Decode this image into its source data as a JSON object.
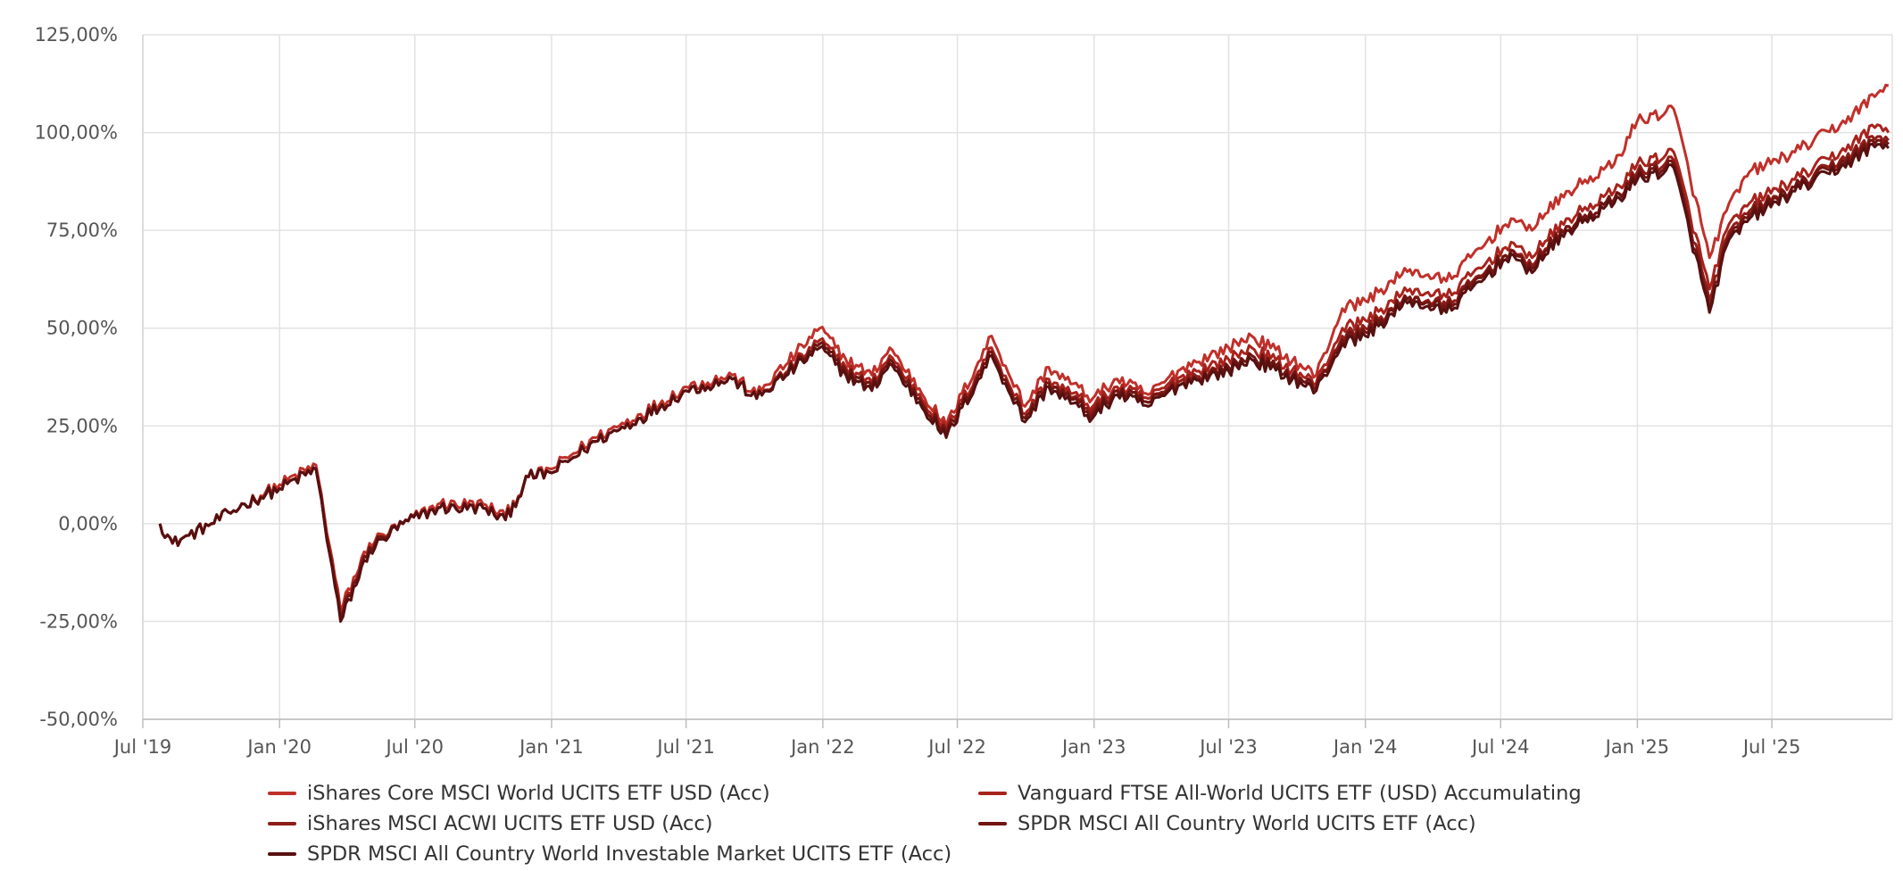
{
  "chart_data": {
    "type": "line",
    "ylim": [
      -50,
      125
    ],
    "y_ticks": [
      "-50,00%",
      "-25,00%",
      "0,00%",
      "25,00%",
      "50,00%",
      "75,00%",
      "100,00%",
      "125,00%"
    ],
    "y_tick_values": [
      -50,
      -25,
      0,
      25,
      50,
      75,
      100,
      125
    ],
    "xlim": [
      "2019-07-01",
      "2025-12-10"
    ],
    "x_ticks": [
      "Jul '19",
      "Jan '20",
      "Jul '20",
      "Jan '21",
      "Jul '21",
      "Jan '22",
      "Jul '22",
      "Jan '23",
      "Jul '23",
      "Jan '24",
      "Jul '24",
      "Jan '25",
      "Jul '25"
    ],
    "x_tick_dates": [
      "2019-07-01",
      "2020-01-01",
      "2020-07-01",
      "2021-01-01",
      "2021-07-01",
      "2022-01-01",
      "2022-07-01",
      "2023-01-01",
      "2023-07-01",
      "2024-01-01",
      "2024-07-01",
      "2025-01-01",
      "2025-07-01"
    ],
    "grid": true,
    "legend_position": "bottom",
    "series": [
      {
        "name": "iShares Core MSCI World UCITS ETF USD (Acc)",
        "color": "#c0302a",
        "x": [
          "2019-07-24",
          "2019-08-10",
          "2019-09-01",
          "2019-10-01",
          "2019-11-15",
          "2020-01-01",
          "2020-02-19",
          "2020-03-23",
          "2020-05-01",
          "2020-06-15",
          "2020-08-01",
          "2020-10-01",
          "2020-10-31",
          "2020-12-01",
          "2021-01-01",
          "2021-03-01",
          "2021-05-01",
          "2021-07-01",
          "2021-09-01",
          "2021-10-04",
          "2021-12-28",
          "2022-02-01",
          "2022-03-08",
          "2022-04-01",
          "2022-06-16",
          "2022-08-16",
          "2022-09-30",
          "2022-11-01",
          "2022-12-30",
          "2023-02-01",
          "2023-03-15",
          "2023-05-01",
          "2023-07-01",
          "2023-08-01",
          "2023-10-27",
          "2023-12-01",
          "2024-01-01",
          "2024-03-01",
          "2024-04-19",
          "2024-07-15",
          "2024-08-05",
          "2024-10-01",
          "2024-12-01",
          "2025-01-01",
          "2025-02-19",
          "2025-04-08",
          "2025-05-01",
          "2025-06-01",
          "2025-08-01",
          "2025-10-01",
          "2025-11-20",
          "2025-12-05"
        ],
        "values": [
          0,
          -5,
          -3,
          0,
          5,
          10,
          15,
          -22,
          -5,
          0,
          5,
          5,
          2,
          12,
          14,
          22,
          28,
          35,
          38,
          33,
          50,
          42,
          38,
          45,
          25,
          48,
          30,
          40,
          32,
          37,
          33,
          40,
          45,
          48,
          38,
          55,
          57,
          65,
          62,
          78,
          75,
          85,
          92,
          103,
          106,
          68,
          80,
          90,
          95,
          102,
          110,
          112
        ]
      },
      {
        "name": "Vanguard FTSE All-World UCITS ETF (USD) Accumulating",
        "color": "#a8231d",
        "x": [
          "2019-07-24",
          "2019-08-10",
          "2019-09-01",
          "2019-10-01",
          "2019-11-15",
          "2020-01-01",
          "2020-02-19",
          "2020-03-23",
          "2020-05-01",
          "2020-06-15",
          "2020-08-01",
          "2020-10-01",
          "2020-10-31",
          "2020-12-01",
          "2021-01-01",
          "2021-03-01",
          "2021-05-01",
          "2021-07-01",
          "2021-09-01",
          "2021-10-04",
          "2021-12-28",
          "2022-02-01",
          "2022-03-08",
          "2022-04-01",
          "2022-06-16",
          "2022-08-16",
          "2022-09-30",
          "2022-11-01",
          "2022-12-30",
          "2023-02-01",
          "2023-03-15",
          "2023-05-01",
          "2023-07-01",
          "2023-08-01",
          "2023-10-27",
          "2023-12-01",
          "2024-01-01",
          "2024-03-01",
          "2024-04-19",
          "2024-07-15",
          "2024-08-05",
          "2024-10-01",
          "2024-12-01",
          "2025-01-01",
          "2025-02-19",
          "2025-04-08",
          "2025-05-01",
          "2025-06-01",
          "2025-08-01",
          "2025-10-01",
          "2025-11-20",
          "2025-12-05"
        ],
        "values": [
          0,
          -5,
          -3,
          0,
          5,
          9,
          14,
          -23,
          -6,
          0,
          4,
          4,
          1,
          12,
          13,
          21,
          27,
          34,
          37,
          32,
          47,
          40,
          36,
          43,
          24,
          45,
          28,
          37,
          30,
          35,
          32,
          38,
          42,
          45,
          36,
          50,
          52,
          60,
          58,
          72,
          68,
          78,
          85,
          92,
          95,
          60,
          75,
          82,
          88,
          95,
          102,
          100
        ]
      },
      {
        "name": "iShares MSCI ACWI UCITS ETF USD (Acc)",
        "color": "#8e1d18",
        "x": [
          "2019-07-24",
          "2019-08-10",
          "2019-09-01",
          "2019-10-01",
          "2019-11-15",
          "2020-01-01",
          "2020-02-19",
          "2020-03-23",
          "2020-05-01",
          "2020-06-15",
          "2020-08-01",
          "2020-10-01",
          "2020-10-31",
          "2020-12-01",
          "2021-01-01",
          "2021-03-01",
          "2021-05-01",
          "2021-07-01",
          "2021-09-01",
          "2021-10-04",
          "2021-12-28",
          "2022-02-01",
          "2022-03-08",
          "2022-04-01",
          "2022-06-16",
          "2022-08-16",
          "2022-09-30",
          "2022-11-01",
          "2022-12-30",
          "2023-02-01",
          "2023-03-15",
          "2023-05-01",
          "2023-07-01",
          "2023-08-01",
          "2023-10-27",
          "2023-12-01",
          "2024-01-01",
          "2024-03-01",
          "2024-04-19",
          "2024-07-15",
          "2024-08-05",
          "2024-10-01",
          "2024-12-01",
          "2025-01-01",
          "2025-02-19",
          "2025-04-08",
          "2025-05-01",
          "2025-06-01",
          "2025-08-01",
          "2025-10-01",
          "2025-11-20",
          "2025-12-05"
        ],
        "values": [
          0,
          -5,
          -3,
          0,
          5,
          9,
          14,
          -24,
          -6,
          0,
          4,
          4,
          1,
          12,
          13,
          21,
          27,
          34,
          37,
          32,
          46,
          39,
          35,
          42,
          23,
          44,
          27,
          36,
          29,
          34,
          31,
          37,
          40,
          43,
          35,
          48,
          50,
          58,
          56,
          70,
          66,
          76,
          83,
          90,
          93,
          57,
          73,
          80,
          86,
          93,
          99,
          98
        ]
      },
      {
        "name": "SPDR MSCI All Country World UCITS ETF (Acc)",
        "color": "#701512",
        "x": [
          "2019-07-24",
          "2019-08-10",
          "2019-09-01",
          "2019-10-01",
          "2019-11-15",
          "2020-01-01",
          "2020-02-19",
          "2020-03-23",
          "2020-05-01",
          "2020-06-15",
          "2020-08-01",
          "2020-10-01",
          "2020-10-31",
          "2020-12-01",
          "2021-01-01",
          "2021-03-01",
          "2021-05-01",
          "2021-07-01",
          "2021-09-01",
          "2021-10-04",
          "2021-12-28",
          "2022-02-01",
          "2022-03-08",
          "2022-04-01",
          "2022-06-16",
          "2022-08-16",
          "2022-09-30",
          "2022-11-01",
          "2022-12-30",
          "2023-02-01",
          "2023-03-15",
          "2023-05-01",
          "2023-07-01",
          "2023-08-01",
          "2023-10-27",
          "2023-12-01",
          "2024-01-01",
          "2024-03-01",
          "2024-04-19",
          "2024-07-15",
          "2024-08-05",
          "2024-10-01",
          "2024-12-01",
          "2025-01-01",
          "2025-02-19",
          "2025-04-08",
          "2025-05-01",
          "2025-06-01",
          "2025-08-01",
          "2025-10-01",
          "2025-11-20",
          "2025-12-05"
        ],
        "values": [
          0,
          -5,
          -3,
          0,
          5,
          9,
          14,
          -24,
          -6,
          0,
          4,
          4,
          1,
          12,
          13,
          21,
          27,
          34,
          37,
          32,
          46,
          39,
          35,
          42,
          23,
          44,
          27,
          36,
          28,
          34,
          31,
          36,
          40,
          43,
          35,
          47,
          49,
          58,
          55,
          70,
          65,
          76,
          83,
          89,
          92,
          55,
          72,
          79,
          86,
          92,
          98,
          97
        ]
      },
      {
        "name": "SPDR MSCI All Country World Investable Market UCITS ETF (Acc)",
        "color": "#571010",
        "x": [
          "2019-07-24",
          "2019-08-10",
          "2019-09-01",
          "2019-10-01",
          "2019-11-15",
          "2020-01-01",
          "2020-02-19",
          "2020-03-23",
          "2020-05-01",
          "2020-06-15",
          "2020-08-01",
          "2020-10-01",
          "2020-10-31",
          "2020-12-01",
          "2021-01-01",
          "2021-03-01",
          "2021-05-01",
          "2021-07-01",
          "2021-09-01",
          "2021-10-04",
          "2021-12-28",
          "2022-02-01",
          "2022-03-08",
          "2022-04-01",
          "2022-06-16",
          "2022-08-16",
          "2022-09-30",
          "2022-11-01",
          "2022-12-30",
          "2023-02-01",
          "2023-03-15",
          "2023-05-01",
          "2023-07-01",
          "2023-08-01",
          "2023-10-27",
          "2023-12-01",
          "2024-01-01",
          "2024-03-01",
          "2024-04-19",
          "2024-07-15",
          "2024-08-05",
          "2024-10-01",
          "2024-12-01",
          "2025-01-01",
          "2025-02-19",
          "2025-04-08",
          "2025-05-01",
          "2025-06-01",
          "2025-08-01",
          "2025-10-01",
          "2025-11-20",
          "2025-12-05"
        ],
        "values": [
          0,
          -5,
          -3,
          0,
          5,
          9,
          14,
          -25,
          -7,
          0,
          4,
          4,
          1,
          12,
          13,
          21,
          27,
          34,
          37,
          32,
          45,
          38,
          34,
          41,
          22,
          43,
          26,
          35,
          27,
          33,
          30,
          36,
          39,
          42,
          34,
          46,
          48,
          57,
          54,
          69,
          64,
          75,
          82,
          88,
          91,
          54,
          71,
          78,
          85,
          91,
          97,
          96
        ]
      }
    ]
  }
}
